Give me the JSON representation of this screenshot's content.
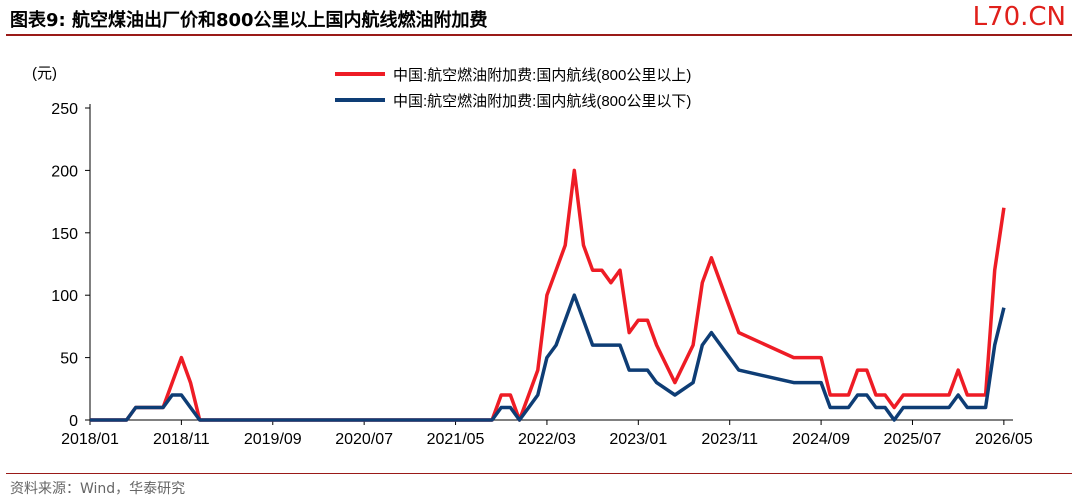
{
  "header": {
    "title": "图表9: 航空煤油出厂价和800公里以上国内航线燃油附加费",
    "brand": "L70.CN"
  },
  "footer": {
    "source": "资料来源：Wind，华泰研究"
  },
  "colors": {
    "red": "#ee1c25",
    "blue": "#0e3d75",
    "rule": "#9a1a18"
  },
  "chart_data": {
    "type": "line",
    "ylabel": "(元)",
    "ylim": [
      0,
      250
    ],
    "yticks": [
      0,
      50,
      100,
      150,
      200,
      250
    ],
    "xlim": [
      "2018-01",
      "2026-06"
    ],
    "xticks": [
      "2018/01",
      "2018/11",
      "2019/09",
      "2020/07",
      "2021/05",
      "2022/03",
      "2023/01",
      "2023/11",
      "2024/09",
      "2025/07",
      "2026/05"
    ],
    "legend_position": "top-center",
    "series": [
      {
        "name": "中国:航空燃油附加费:国内航线(800公里以上)",
        "color": "#ee1c25",
        "points": [
          [
            "2018-01",
            0
          ],
          [
            "2018-05",
            0
          ],
          [
            "2018-06",
            10
          ],
          [
            "2018-07",
            10
          ],
          [
            "2018-08",
            10
          ],
          [
            "2018-09",
            10
          ],
          [
            "2018-10",
            30
          ],
          [
            "2018-11",
            50
          ],
          [
            "2018-12",
            30
          ],
          [
            "2019-01",
            0
          ],
          [
            "2021-09",
            0
          ],
          [
            "2021-10",
            20
          ],
          [
            "2021-11",
            20
          ],
          [
            "2021-12",
            0
          ],
          [
            "2022-01",
            20
          ],
          [
            "2022-02",
            40
          ],
          [
            "2022-03",
            100
          ],
          [
            "2022-04",
            120
          ],
          [
            "2022-05",
            140
          ],
          [
            "2022-06",
            200
          ],
          [
            "2022-07",
            140
          ],
          [
            "2022-08",
            120
          ],
          [
            "2022-09",
            120
          ],
          [
            "2022-10",
            110
          ],
          [
            "2022-11",
            120
          ],
          [
            "2022-12",
            70
          ],
          [
            "2023-01",
            80
          ],
          [
            "2023-02",
            80
          ],
          [
            "2023-03",
            60
          ],
          [
            "2023-05",
            30
          ],
          [
            "2023-07",
            60
          ],
          [
            "2023-08",
            110
          ],
          [
            "2023-09",
            130
          ],
          [
            "2023-12",
            70
          ],
          [
            "2024-06",
            50
          ],
          [
            "2024-09",
            50
          ],
          [
            "2024-10",
            20
          ],
          [
            "2024-12",
            20
          ],
          [
            "2025-01",
            40
          ],
          [
            "2025-02",
            40
          ],
          [
            "2025-03",
            20
          ],
          [
            "2025-04",
            20
          ],
          [
            "2025-05",
            10
          ],
          [
            "2025-06",
            20
          ],
          [
            "2025-11",
            20
          ],
          [
            "2025-12",
            40
          ],
          [
            "2026-01",
            20
          ],
          [
            "2026-03",
            20
          ],
          [
            "2026-04",
            120
          ],
          [
            "2026-05",
            170
          ]
        ]
      },
      {
        "name": "中国:航空燃油附加费:国内航线(800公里以下)",
        "color": "#0e3d75",
        "points": [
          [
            "2018-01",
            0
          ],
          [
            "2018-05",
            0
          ],
          [
            "2018-06",
            10
          ],
          [
            "2018-07",
            10
          ],
          [
            "2018-08",
            10
          ],
          [
            "2018-09",
            10
          ],
          [
            "2018-10",
            20
          ],
          [
            "2018-11",
            20
          ],
          [
            "2018-12",
            10
          ],
          [
            "2019-01",
            0
          ],
          [
            "2021-09",
            0
          ],
          [
            "2021-10",
            10
          ],
          [
            "2021-11",
            10
          ],
          [
            "2021-12",
            0
          ],
          [
            "2022-01",
            10
          ],
          [
            "2022-02",
            20
          ],
          [
            "2022-03",
            50
          ],
          [
            "2022-04",
            60
          ],
          [
            "2022-05",
            80
          ],
          [
            "2022-06",
            100
          ],
          [
            "2022-07",
            80
          ],
          [
            "2022-08",
            60
          ],
          [
            "2022-09",
            60
          ],
          [
            "2022-11",
            60
          ],
          [
            "2022-12",
            40
          ],
          [
            "2023-02",
            40
          ],
          [
            "2023-03",
            30
          ],
          [
            "2023-05",
            20
          ],
          [
            "2023-07",
            30
          ],
          [
            "2023-08",
            60
          ],
          [
            "2023-09",
            70
          ],
          [
            "2023-12",
            40
          ],
          [
            "2024-06",
            30
          ],
          [
            "2024-09",
            30
          ],
          [
            "2024-10",
            10
          ],
          [
            "2024-12",
            10
          ],
          [
            "2025-01",
            20
          ],
          [
            "2025-02",
            20
          ],
          [
            "2025-03",
            10
          ],
          [
            "2025-04",
            10
          ],
          [
            "2025-05",
            0
          ],
          [
            "2025-06",
            10
          ],
          [
            "2025-11",
            10
          ],
          [
            "2025-12",
            20
          ],
          [
            "2026-01",
            10
          ],
          [
            "2026-03",
            10
          ],
          [
            "2026-04",
            60
          ],
          [
            "2026-05",
            90
          ]
        ]
      }
    ]
  }
}
